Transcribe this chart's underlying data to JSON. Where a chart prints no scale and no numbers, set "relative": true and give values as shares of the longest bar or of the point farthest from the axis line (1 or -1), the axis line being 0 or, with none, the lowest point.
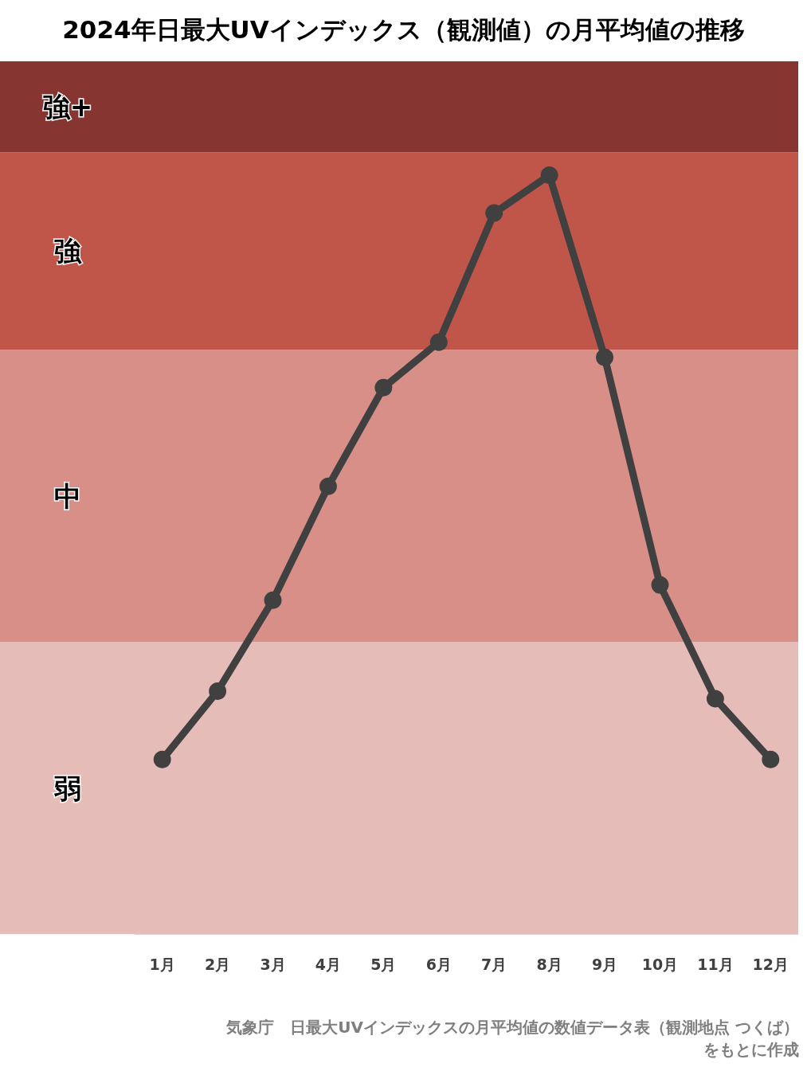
{
  "chart_data": {
    "type": "line",
    "title": "2024年日最大UVインデックス（観測値）の月平均値の推移",
    "categories": [
      "1月",
      "2月",
      "3月",
      "4月",
      "5月",
      "6月",
      "7月",
      "8月",
      "9月",
      "10月",
      "11月",
      "12月"
    ],
    "series": [
      {
        "color": "#404040",
        "values": [
          0.23,
          0.32,
          0.44,
          0.59,
          0.72,
          0.78,
          0.95,
          1,
          0.76,
          0.46,
          0.31,
          0.23
        ]
      }
    ],
    "relative": true,
    "marker": "circle",
    "line_style": "solid",
    "tick_labels": "x",
    "bands": [
      {
        "axis": "y",
        "from": 0,
        "to": 0.385,
        "label": "弱",
        "color": "#e6bcb8"
      },
      {
        "axis": "y",
        "from": 0.385,
        "to": 0.77,
        "label": "中",
        "color": "#d88f88"
      },
      {
        "axis": "y",
        "from": 0.77,
        "to": 1.03,
        "label": "強",
        "color": "#c0554a"
      },
      {
        "axis": "y",
        "from": 1.03,
        "to": 1.15,
        "label": "強+",
        "color": "#873530"
      }
    ],
    "annotations": [
      "気象庁　日最大UVインデックスの月平均値の数値データ表（観測地点 つくば）",
      "をもとに作成"
    ]
  }
}
